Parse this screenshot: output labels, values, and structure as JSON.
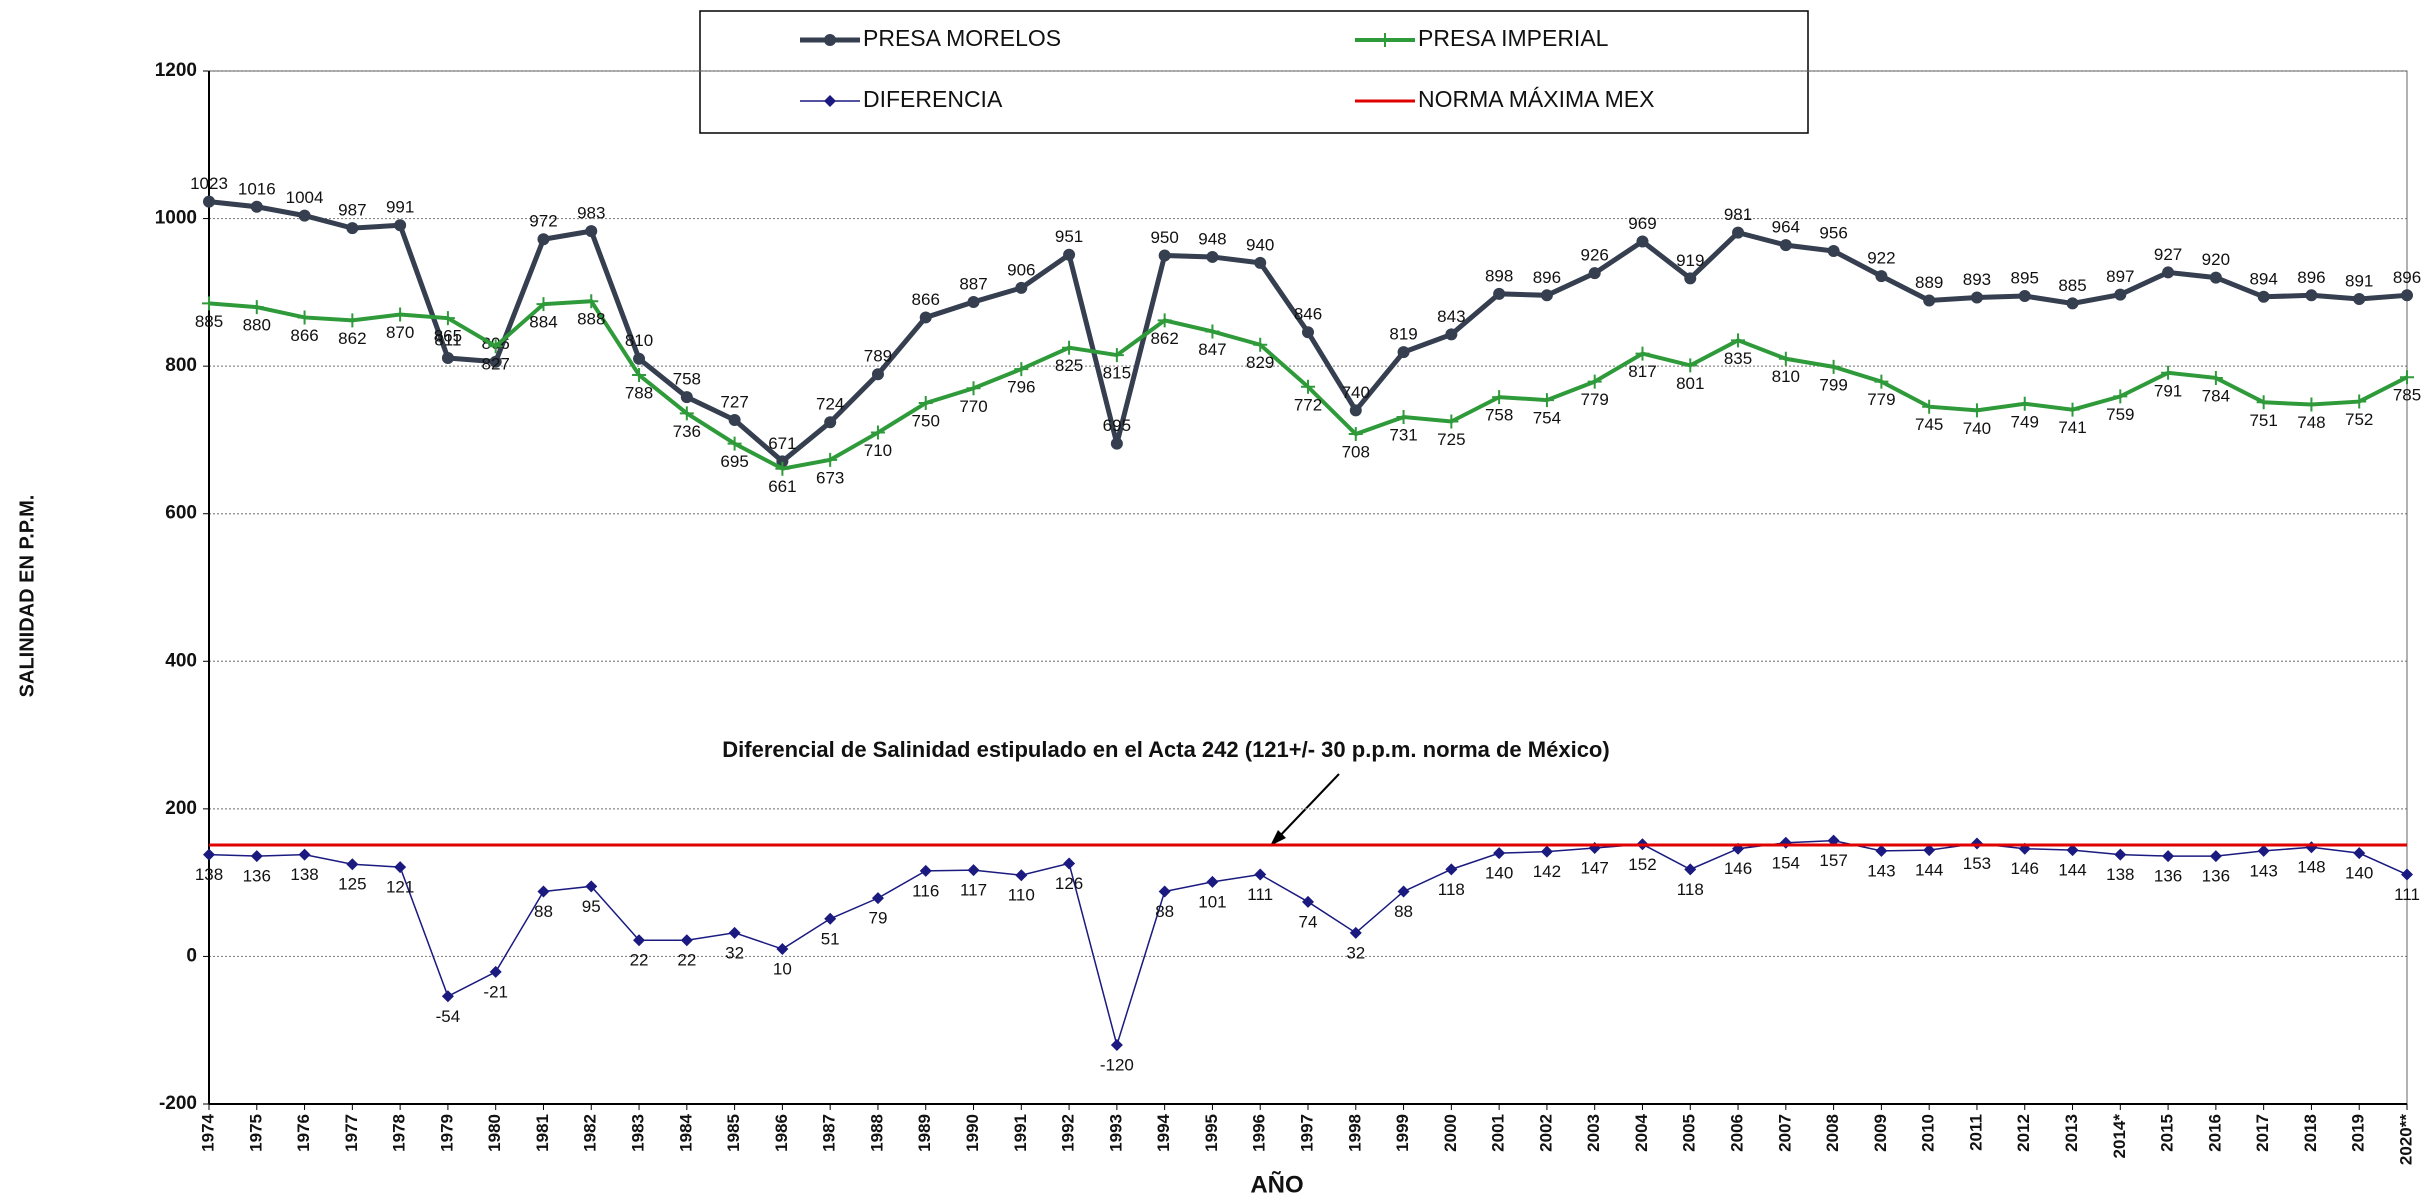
{
  "chart_data": {
    "type": "line",
    "y_label": "SALINIDAD EN P.P.M.",
    "x_label": "AÑO",
    "annotation": "Diferencial de Salinidad estipulado en el Acta 242 (121+/- 30 p.p.m. norma de México)",
    "categories": [
      "1974",
      "1975",
      "1976",
      "1977",
      "1978",
      "1979",
      "1980",
      "1981",
      "1982",
      "1983",
      "1984",
      "1985",
      "1986",
      "1987",
      "1988",
      "1989",
      "1990",
      "1991",
      "1992",
      "1993",
      "1994",
      "1995",
      "1996",
      "1997",
      "1998",
      "1999",
      "2000",
      "2001",
      "2002",
      "2003",
      "2004",
      "2005",
      "2006",
      "2007",
      "2008",
      "2009",
      "2010",
      "2011",
      "2012",
      "2013",
      "2014*",
      "2015",
      "2016",
      "2017",
      "2018",
      "2019",
      "2020**"
    ],
    "ylim": [
      -200,
      1200
    ],
    "yticks": [
      -200,
      0,
      200,
      400,
      600,
      800,
      1000,
      1200
    ],
    "grid": true,
    "legend": "top",
    "series": [
      {
        "name": "PRESA MORELOS",
        "color": "#353f4f",
        "values": [
          1023,
          1016,
          1004,
          987,
          991,
          811,
          806,
          972,
          983,
          810,
          758,
          727,
          671,
          724,
          789,
          866,
          887,
          906,
          951,
          695,
          950,
          948,
          940,
          846,
          740,
          819,
          843,
          898,
          896,
          926,
          969,
          919,
          981,
          964,
          956,
          922,
          889,
          893,
          895,
          885,
          897,
          927,
          920,
          894,
          896,
          891,
          896
        ]
      },
      {
        "name": "PRESA IMPERIAL",
        "color": "#2e9a3a",
        "values": [
          885,
          880,
          866,
          862,
          870,
          865,
          827,
          884,
          888,
          788,
          736,
          695,
          661,
          673,
          710,
          750,
          770,
          796,
          825,
          815,
          862,
          847,
          829,
          772,
          708,
          731,
          725,
          758,
          754,
          779,
          817,
          801,
          835,
          810,
          799,
          779,
          745,
          740,
          749,
          741,
          759,
          791,
          784,
          751,
          748,
          752,
          785
        ]
      },
      {
        "name": "DIFERENCIA",
        "color": "#1a1a80",
        "values": [
          138,
          136,
          138,
          125,
          121,
          -54,
          -21,
          88,
          95,
          22,
          22,
          32,
          10,
          51,
          79,
          116,
          117,
          110,
          126,
          -120,
          88,
          101,
          111,
          74,
          32,
          88,
          118,
          140,
          142,
          147,
          152,
          118,
          146,
          154,
          157,
          143,
          144,
          153,
          146,
          144,
          138,
          136,
          136,
          143,
          148,
          140,
          111
        ]
      },
      {
        "name": "NORMA MÁXIMA MEX",
        "color": "#e00000",
        "value": 151
      }
    ]
  }
}
